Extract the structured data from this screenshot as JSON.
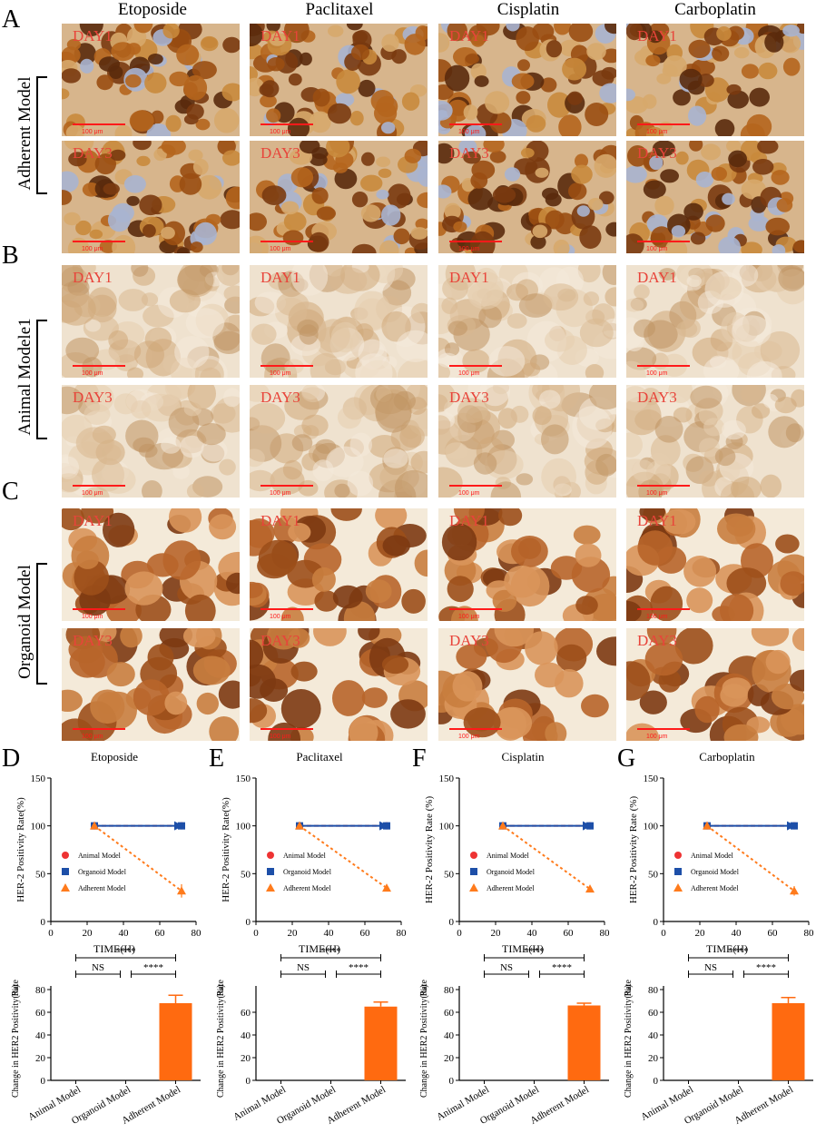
{
  "column_headers": [
    "Etoposide",
    "Paclitaxel",
    "Cisplatin",
    "Carboplatin"
  ],
  "panel_letters": {
    "A": "A",
    "B": "B",
    "C": "C",
    "D": "D",
    "E": "E",
    "F": "F",
    "G": "G"
  },
  "row_groups": [
    {
      "label": "Adherent Model",
      "day_labels": [
        "DAY1",
        "DAY3"
      ],
      "tile_style": "adherent"
    },
    {
      "label": "Animal Modele1",
      "day_labels": [
        "DAY1",
        "DAY3"
      ],
      "tile_style": "animal"
    },
    {
      "label": "Organoid Model",
      "day_labels": [
        "DAY1",
        "DAY3"
      ],
      "tile_style": "organoid"
    }
  ],
  "scale_bar_label": "100 μm",
  "colors": {
    "day_label": "#e8443a",
    "scale_bar": "#ff1a1a",
    "animal_model": "#ee3333",
    "organoid_model": "#1d4fa8",
    "adherent_model": "#ff7b1c",
    "bar_fill": "#ff6a10"
  },
  "chart_data": [
    {
      "type": "line",
      "panel": "D",
      "title": "Etoposide",
      "xlabel": "TIME(H)",
      "ylabel": "HER-2 Positivity Rate(%)",
      "xlim": [
        0,
        80
      ],
      "ylim": [
        0,
        150
      ],
      "xticks": [
        0,
        20,
        40,
        60,
        80
      ],
      "yticks": [
        0,
        50,
        100,
        150
      ],
      "series": [
        {
          "name": "Animal Model",
          "marker": "circle",
          "x": [
            24,
            72
          ],
          "y": [
            100,
            100
          ]
        },
        {
          "name": "Organoid Model",
          "marker": "square",
          "x": [
            24,
            72
          ],
          "y": [
            100,
            100
          ]
        },
        {
          "name": "Adherent Model",
          "marker": "triangle",
          "x": [
            24,
            72
          ],
          "y": [
            100,
            32
          ],
          "error": [
            0,
            7
          ]
        }
      ]
    },
    {
      "type": "line",
      "panel": "E",
      "title": "Paclitaxel",
      "xlabel": "TIME(H)",
      "ylabel": "HER-2 Positivity Rate(%)",
      "xlim": [
        0,
        80
      ],
      "ylim": [
        0,
        150
      ],
      "xticks": [
        0,
        20,
        40,
        60,
        80
      ],
      "yticks": [
        0,
        50,
        100,
        150
      ],
      "series": [
        {
          "name": "Animal Model",
          "marker": "circle",
          "x": [
            24,
            72
          ],
          "y": [
            100,
            100
          ]
        },
        {
          "name": "Organoid Model",
          "marker": "square",
          "x": [
            24,
            72
          ],
          "y": [
            100,
            100
          ]
        },
        {
          "name": "Adherent Model",
          "marker": "triangle",
          "x": [
            24,
            72
          ],
          "y": [
            100,
            35
          ],
          "error": [
            0,
            3
          ]
        }
      ]
    },
    {
      "type": "line",
      "panel": "F",
      "title": "Cisplatin",
      "xlabel": "TIME(H)",
      "ylabel": "HER-2 Positivity Rate (%)",
      "xlim": [
        0,
        80
      ],
      "ylim": [
        0,
        150
      ],
      "xticks": [
        0,
        20,
        40,
        60,
        80
      ],
      "yticks": [
        0,
        50,
        100,
        150
      ],
      "series": [
        {
          "name": "Animal Model",
          "marker": "circle",
          "x": [
            24,
            72
          ],
          "y": [
            100,
            100
          ]
        },
        {
          "name": "Organoid Model",
          "marker": "square",
          "x": [
            24,
            72
          ],
          "y": [
            100,
            100
          ]
        },
        {
          "name": "Adherent Model",
          "marker": "triangle",
          "x": [
            24,
            72
          ],
          "y": [
            100,
            34
          ],
          "error": [
            0,
            2
          ]
        }
      ]
    },
    {
      "type": "line",
      "panel": "G",
      "title": "Carboplatin",
      "xlabel": "TIME(H)",
      "ylabel": "HER-2 Positivity Rate (%)",
      "xlim": [
        0,
        80
      ],
      "ylim": [
        0,
        150
      ],
      "xticks": [
        0,
        20,
        40,
        60,
        80
      ],
      "yticks": [
        0,
        50,
        100,
        150
      ],
      "series": [
        {
          "name": "Animal Model",
          "marker": "circle",
          "x": [
            24,
            72
          ],
          "y": [
            100,
            100
          ]
        },
        {
          "name": "Organoid Model",
          "marker": "square",
          "x": [
            24,
            72
          ],
          "y": [
            100,
            100
          ]
        },
        {
          "name": "Adherent Model",
          "marker": "triangle",
          "x": [
            24,
            72
          ],
          "y": [
            100,
            32
          ],
          "error": [
            0,
            5
          ]
        }
      ]
    },
    {
      "type": "bar",
      "panel": "D",
      "ylabel": "Change in HER2 Positivity Rate",
      "yunit": "(%)",
      "categories": [
        "Animal Model",
        "Organoid Model",
        "Adherent Model"
      ],
      "values": [
        0,
        0,
        68
      ],
      "errors": [
        0,
        0,
        7
      ],
      "ylim": [
        0,
        80
      ],
      "yticks": [
        0,
        20,
        40,
        60,
        80
      ],
      "significance": [
        {
          "from": 0,
          "to": 1,
          "label": "NS"
        },
        {
          "from": 1,
          "to": 2,
          "label": "****"
        },
        {
          "from": 0,
          "to": 2,
          "label": "****"
        }
      ]
    },
    {
      "type": "bar",
      "panel": "E",
      "ylabel": "Change in HER2 Positivity Rate",
      "yunit": "(%)",
      "categories": [
        "Animal Model",
        "Organoid Model",
        "Adherent Model"
      ],
      "values": [
        0,
        0,
        65
      ],
      "errors": [
        0,
        0,
        4
      ],
      "ylim": [
        0,
        80
      ],
      "yticks": [
        0,
        20,
        40,
        60
      ],
      "significance": [
        {
          "from": 0,
          "to": 1,
          "label": "NS"
        },
        {
          "from": 1,
          "to": 2,
          "label": "****"
        },
        {
          "from": 0,
          "to": 2,
          "label": "****"
        }
      ]
    },
    {
      "type": "bar",
      "panel": "F",
      "ylabel": "Change in HER2 Positivity Rate",
      "yunit": "(%)",
      "categories": [
        "Animal Model",
        "Organoid Model",
        "Adherent Model"
      ],
      "values": [
        0,
        0,
        66
      ],
      "errors": [
        0,
        0,
        2
      ],
      "ylim": [
        0,
        80
      ],
      "yticks": [
        0,
        20,
        40,
        60,
        80
      ],
      "significance": [
        {
          "from": 0,
          "to": 1,
          "label": "NS"
        },
        {
          "from": 1,
          "to": 2,
          "label": "****"
        },
        {
          "from": 0,
          "to": 2,
          "label": "****"
        }
      ]
    },
    {
      "type": "bar",
      "panel": "G",
      "ylabel": "Change in HER2 Positivity Rate",
      "yunit": "(%)",
      "categories": [
        "Animal Model",
        "Organoid Model",
        "Adherent Model"
      ],
      "values": [
        0,
        0,
        68
      ],
      "errors": [
        0,
        0,
        5
      ],
      "ylim": [
        0,
        80
      ],
      "yticks": [
        0,
        20,
        40,
        60,
        80
      ],
      "significance": [
        {
          "from": 0,
          "to": 1,
          "label": "NS"
        },
        {
          "from": 1,
          "to": 2,
          "label": "****"
        },
        {
          "from": 0,
          "to": 2,
          "label": "****"
        }
      ]
    }
  ]
}
